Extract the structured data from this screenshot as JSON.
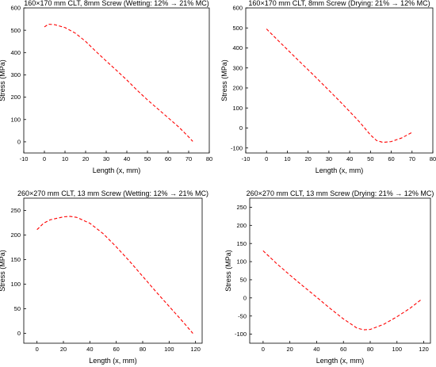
{
  "chart_data": [
    {
      "type": "line",
      "title": "160×170 mm CLT, 8mm Screw (Wetting: 12% → 21% MC)",
      "xlabel": "Length (x, mm)",
      "ylabel": "Stress (MPa)",
      "xlim": [
        -10,
        80
      ],
      "ylim": [
        -50,
        600
      ],
      "xticks": [
        -10,
        0,
        10,
        20,
        30,
        40,
        50,
        60,
        70,
        80
      ],
      "yticks": [
        0,
        100,
        200,
        300,
        400,
        500,
        600
      ],
      "grid": false,
      "line_color": "#ff0000",
      "line_style": "dashed",
      "series": [
        {
          "x": [
            0,
            2,
            5,
            10,
            15,
            20,
            25,
            30,
            35,
            40,
            45,
            50,
            55,
            60,
            65,
            70,
            72
          ],
          "y": [
            515,
            527,
            525,
            512,
            487,
            450,
            405,
            362,
            320,
            277,
            231,
            188,
            148,
            108,
            68,
            22,
            2
          ]
        }
      ]
    },
    {
      "type": "line",
      "title": "160×170 mm CLT, 8mm Screw (Drying: 21% → 12% MC)",
      "xlabel": "Length (x, mm)",
      "ylabel": "Stress (MPa)",
      "xlim": [
        -10,
        80
      ],
      "ylim": [
        -125,
        600
      ],
      "xticks": [
        -10,
        0,
        10,
        20,
        30,
        40,
        50,
        60,
        70,
        80
      ],
      "yticks": [
        -100,
        0,
        100,
        200,
        300,
        400,
        500,
        600
      ],
      "grid": false,
      "line_color": "#ff0000",
      "line_style": "dashed",
      "series": [
        {
          "x": [
            0,
            5,
            10,
            15,
            20,
            25,
            30,
            35,
            40,
            45,
            50,
            53,
            56,
            60,
            65,
            70
          ],
          "y": [
            495,
            443,
            392,
            341,
            291,
            240,
            188,
            136,
            82,
            27,
            -35,
            -63,
            -72,
            -68,
            -50,
            -22
          ]
        }
      ]
    },
    {
      "type": "line",
      "title": "260×270 mm CLT, 13 mm Screw (Wetting: 12% → 21% MC)",
      "xlabel": "Length (x, mm)",
      "ylabel": "Stress (MPa)",
      "xlim": [
        -10,
        125
      ],
      "ylim": [
        -20,
        275
      ],
      "xticks": [
        0,
        20,
        40,
        60,
        80,
        100,
        120
      ],
      "yticks": [
        0,
        50,
        100,
        150,
        200,
        250
      ],
      "grid": false,
      "line_color": "#ff0000",
      "line_style": "dashed",
      "series": [
        {
          "x": [
            0,
            5,
            10,
            20,
            25,
            30,
            40,
            50,
            60,
            70,
            80,
            90,
            100,
            110,
            118
          ],
          "y": [
            211,
            224,
            231,
            237,
            238,
            236,
            224,
            203,
            176,
            147,
            116,
            85,
            55,
            25,
            0
          ]
        }
      ]
    },
    {
      "type": "line",
      "title": "260×270 mm CLT, 13 mm Screw (Drying: 21% → 12% MC)",
      "xlabel": "Length (x, mm)",
      "ylabel": "Stress (MPa)",
      "xlim": [
        -10,
        125
      ],
      "ylim": [
        -125,
        275
      ],
      "xticks": [
        0,
        20,
        40,
        60,
        80,
        100,
        120
      ],
      "yticks": [
        -100,
        -50,
        0,
        50,
        100,
        150,
        200,
        250
      ],
      "grid": false,
      "line_color": "#ff0000",
      "line_style": "dashed",
      "series": [
        {
          "x": [
            0,
            10,
            20,
            30,
            40,
            50,
            60,
            70,
            75,
            80,
            90,
            100,
            110,
            118
          ],
          "y": [
            130,
            95,
            63,
            32,
            2,
            -29,
            -58,
            -83,
            -88,
            -87,
            -73,
            -52,
            -28,
            -5
          ]
        }
      ]
    }
  ]
}
